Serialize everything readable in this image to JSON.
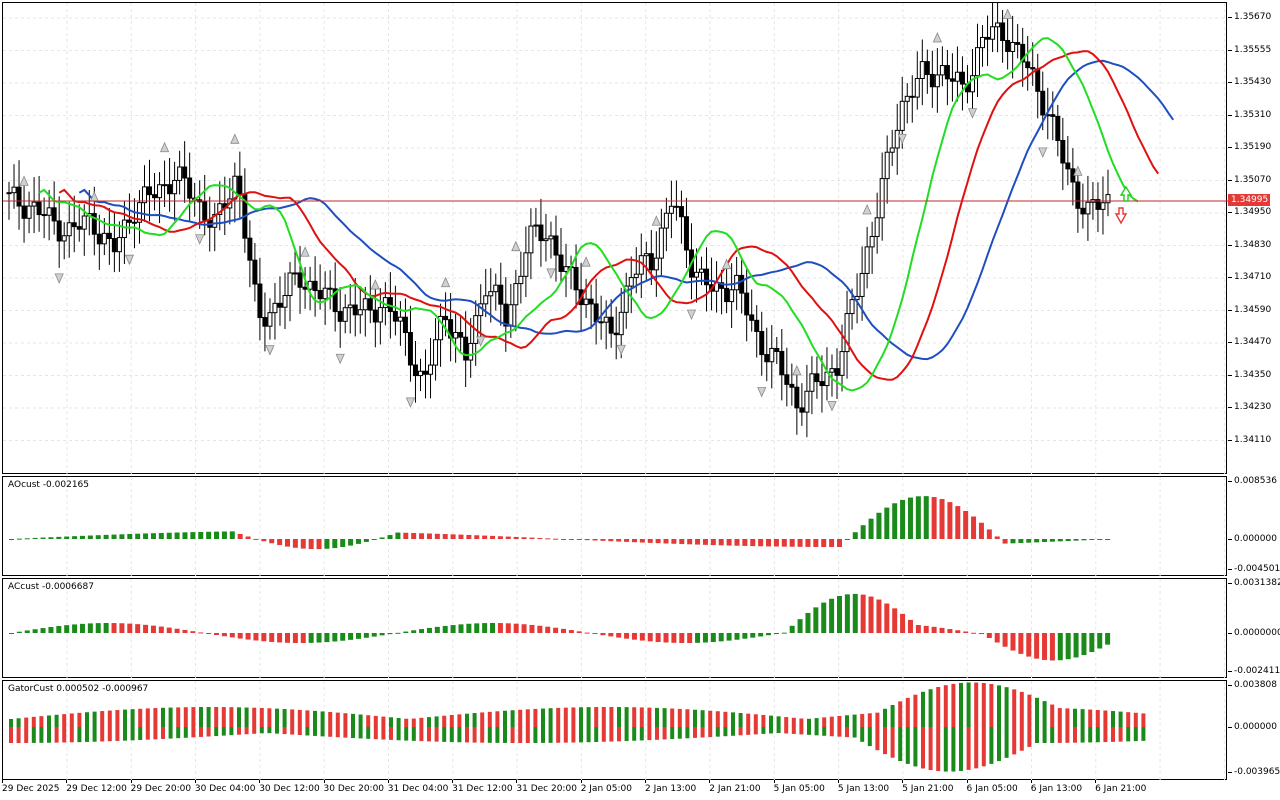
{
  "price_scale": [
    "1.35670",
    "1.35555",
    "1.35430",
    "1.35310",
    "1.35190",
    "1.35070",
    "1.34950",
    "1.34830",
    "1.34710",
    "1.34590",
    "1.34470",
    "1.34350",
    "1.34230",
    "1.34110"
  ],
  "current_price": "1.34995",
  "indicators": {
    "ao": {
      "label": "AOcust -0.002165",
      "scale": [
        "0.008536",
        "0.000000",
        "-0.004501"
      ]
    },
    "ac": {
      "label": "ACcust -0.0006687",
      "scale": [
        "0.0031382",
        "0.0000000",
        "-0.0024114"
      ]
    },
    "gator": {
      "label": "GatorCust 0.000502 -0.000967",
      "scale": [
        "0.003808",
        "0.000000",
        "-0.003965"
      ]
    }
  },
  "time_axis": [
    "29 Dec 2025",
    "29 Dec 12:00",
    "29 Dec 20:00",
    "30 Dec 04:00",
    "30 Dec 12:00",
    "30 Dec 20:00",
    "31 Dec 04:00",
    "31 Dec 12:00",
    "31 Dec 20:00",
    "2 Jan 05:00",
    "2 Jan 13:00",
    "2 Jan 21:00",
    "5 Jan 05:00",
    "5 Jan 13:00",
    "5 Jan 21:00",
    "6 Jan 05:00",
    "6 Jan 13:00",
    "6 Jan 21:00"
  ],
  "colors": {
    "jaw": "#1f4fbf",
    "teeth": "#e01010",
    "lips": "#22dd22",
    "up_bar": "#1a8a1a",
    "down_bar": "#e53935",
    "price_line": "#c62828"
  },
  "chart_data": {
    "type": "candlestick",
    "symbol_scale_ylim": [
      1.3405,
      1.357
    ],
    "close_series_approx": [
      1.35,
      1.3498,
      1.3492,
      1.3488,
      1.3493,
      1.348,
      1.3497,
      1.3502,
      1.3509,
      1.35,
      1.349,
      1.351,
      1.3455,
      1.3462,
      1.3472,
      1.3465,
      1.346,
      1.3458,
      1.3462,
      1.3452,
      1.343,
      1.346,
      1.344,
      1.347,
      1.3455,
      1.3485,
      1.3488,
      1.347,
      1.3462,
      1.3448,
      1.3472,
      1.3478,
      1.35,
      1.3475,
      1.3465,
      1.347,
      1.345,
      1.344,
      1.3425,
      1.3432,
      1.344,
      1.347,
      1.35,
      1.3535,
      1.3545,
      1.3548,
      1.354,
      1.356,
      1.3562,
      1.355,
      1.3535,
      1.351,
      1.3495,
      1.35
    ],
    "alligator": [
      "Jaw",
      "Teeth",
      "Lips"
    ]
  }
}
